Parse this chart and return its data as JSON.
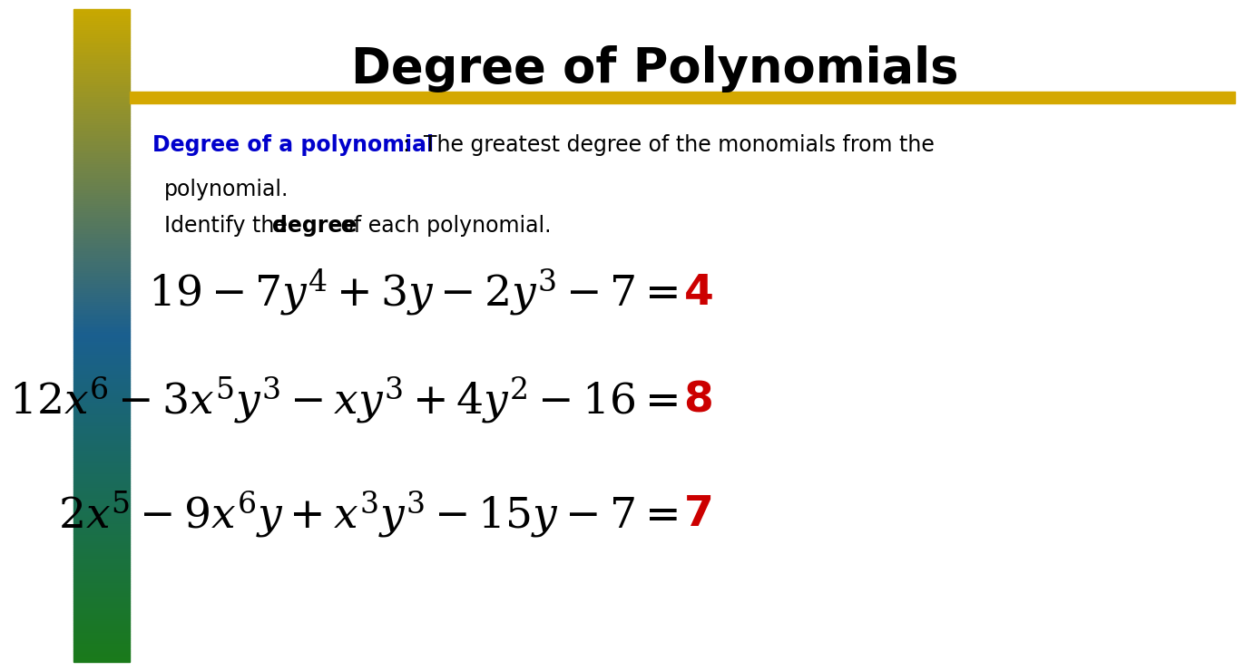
{
  "title": "Degree of Polynomials",
  "title_fontsize": 38,
  "bg_color": "#ffffff",
  "gold_line_color": "#d4a800",
  "definition_bold": "Degree of a polynomial",
  "definition_rest": ":  The greatest degree of the monomials from the",
  "definition_rest2": "polynomial.",
  "identify_pre": "Identify the ",
  "identify_bold": "degree",
  "identify_post": " of each polynomial.",
  "eq1": "$19-7y^4+3y-2y^3-7=$",
  "eq1_answer": "4",
  "eq2": "$12x^6-3x^5y^3-xy^3+4y^2-16=$",
  "eq2_answer": "8",
  "eq3": "$2x^5-9x^6y+x^3y^3-15y-7=$",
  "eq3_answer": "7",
  "black_color": "#000000",
  "red_color": "#cc0000",
  "blue_color": "#0000cc",
  "def_fontsize": 17,
  "eq_fontsize": 34
}
